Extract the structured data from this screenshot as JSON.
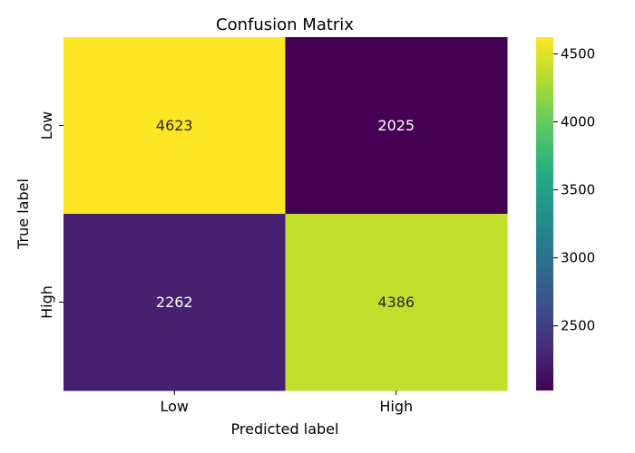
{
  "chart_data": {
    "type": "heatmap",
    "title": "Confusion Matrix",
    "xlabel": "Predicted label",
    "ylabel": "True label",
    "x_categories": [
      "Low",
      "High"
    ],
    "y_categories": [
      "Low",
      "High"
    ],
    "values": [
      [
        4623,
        2025
      ],
      [
        2262,
        4386
      ]
    ],
    "colormap": "viridis",
    "colorbar": {
      "min": 2025,
      "max": 4623,
      "ticks": [
        2500,
        3000,
        3500,
        4000,
        4500
      ]
    },
    "grid": false
  }
}
